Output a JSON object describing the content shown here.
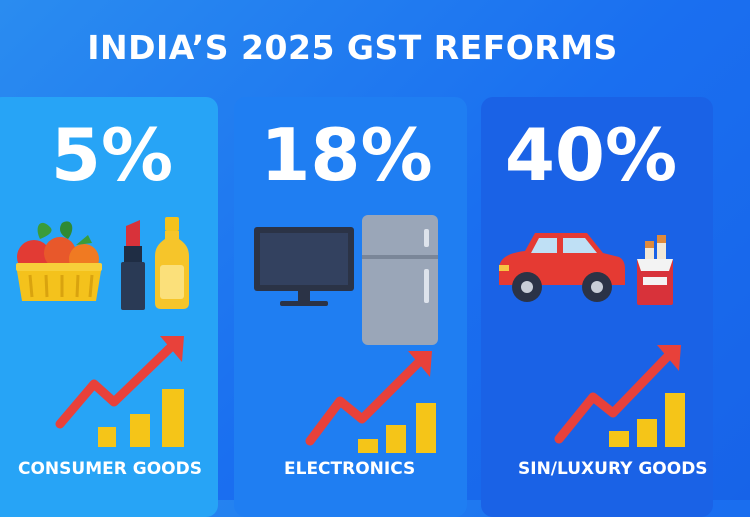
{
  "title": "INDIA’S 2025 GST REFORMS",
  "cards": [
    {
      "rate": "5%",
      "category": "CONSUMER GOODS",
      "icons": [
        "grocery-basket-icon",
        "lipstick-icon",
        "bottle-icon",
        "rising-chart-icon"
      ],
      "color": "#27a4f6"
    },
    {
      "rate": "18%",
      "category": "ELECTRONICS",
      "icons": [
        "television-icon",
        "refrigerator-icon",
        "rising-chart-icon"
      ],
      "color": "#1f7ef2"
    },
    {
      "rate": "40%",
      "category": "SIN/LUXURY GOODS",
      "icons": [
        "car-icon",
        "cigarette-pack-icon",
        "rising-chart-icon"
      ],
      "color": "#1a62e6"
    }
  ],
  "colors": {
    "arrow": "#e8413a",
    "bars": "#f5c518",
    "title": "#ffffff"
  }
}
